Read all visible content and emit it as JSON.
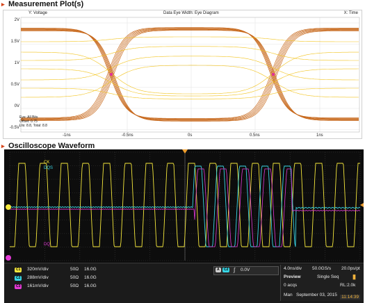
{
  "sections": {
    "measurement_title": "Measurement Plot(s)",
    "oscilloscope_title": "Oscilloscope Waveform"
  },
  "plot": {
    "y_label": "Y: Voltage",
    "center_title": "Data Eye Width: Eye Diagram",
    "x_label": "X: Time",
    "y_ticks": [
      "2V",
      "1.5V",
      "1V",
      "0.5V",
      "0V",
      "-0.5V"
    ],
    "x_ticks": [
      "-1ns",
      "-0.5ns",
      "0s",
      "0.5ns",
      "1ns"
    ],
    "eye_info": [
      "Eye: All Bits",
      "Offset: 0.75",
      "Uis: 8.8, Total: 8.8"
    ],
    "colors": {
      "trace_orange": "#c86a1e",
      "trace_yellow": "#f2c31c",
      "marker": "#e0309a"
    }
  },
  "scope": {
    "channels": [
      {
        "id": "C1",
        "chip": "C1",
        "scale": "320mV/div",
        "coupling": "50Ω",
        "bw": "16.0G",
        "color": "#f5e83c",
        "name": ""
      },
      {
        "id": "C2",
        "chip": "C2",
        "scale": "288mV/div",
        "coupling": "50Ω",
        "bw": "16.0G",
        "color": "#38d6e6",
        "name": ""
      },
      {
        "id": "C3",
        "chip": "C3",
        "scale": "161mV/div",
        "coupling": "50Ω",
        "bw": "16.0G",
        "color": "#e33ad6",
        "name": ""
      }
    ],
    "trace_labels": {
      "ck": "CK",
      "dqs": "DQS",
      "dq": "DQ"
    },
    "trigger": {
      "mode_chip": "A",
      "source_chip": "C2",
      "edge_icon": "rising-edge-icon",
      "level": "0.0V"
    },
    "acquisition": {
      "time_div": "4.0ns/div",
      "sample_rate": "50.0GS/s",
      "resolution": "20.0ps/pt",
      "mode": "Preview",
      "sequence": "Single Seq",
      "acqs": "0 acqs",
      "record_length": "RL:2.0k",
      "man": "Man",
      "date": "September 03, 2015",
      "time": "11:14:39"
    }
  }
}
